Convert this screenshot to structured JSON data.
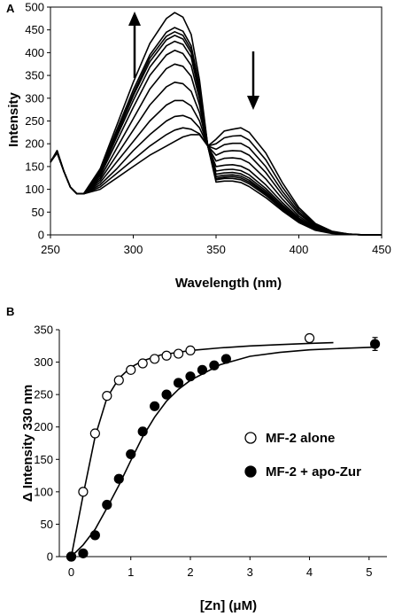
{
  "chart_data": [
    {
      "panel_label": "A",
      "type": "line",
      "xlabel": "Wavelength (nm)",
      "ylabel": "Intensity",
      "xlim": [
        250,
        450
      ],
      "ylim": [
        0,
        500
      ],
      "x_ticks": [
        "250",
        "300",
        "350",
        "400",
        "450"
      ],
      "y_ticks": [
        "0",
        "50",
        "100",
        "150",
        "200",
        "250",
        "300",
        "350",
        "400",
        "450",
        "500"
      ],
      "grid": false,
      "annotations": [
        "arrow up near 325 nm",
        "arrow down near 365 nm"
      ],
      "x": [
        250,
        254,
        258,
        262,
        266,
        270,
        280,
        290,
        300,
        310,
        320,
        325,
        330,
        335,
        340,
        345,
        350,
        355,
        360,
        365,
        370,
        380,
        390,
        400,
        410,
        420,
        430,
        440,
        450
      ],
      "series": [
        {
          "values": [
            160,
            180,
            140,
            105,
            90,
            90,
            100,
            125,
            150,
            175,
            195,
            205,
            215,
            220,
            220,
            195,
            210,
            228,
            232,
            235,
            225,
            180,
            115,
            60,
            25,
            8,
            2,
            0,
            0
          ]
        },
        {
          "values": [
            160,
            180,
            140,
            105,
            90,
            90,
            105,
            135,
            165,
            195,
            220,
            230,
            235,
            232,
            222,
            195,
            200,
            213,
            217,
            218,
            208,
            165,
            105,
            55,
            22,
            7,
            2,
            0,
            0
          ]
        },
        {
          "values": [
            160,
            181,
            140,
            105,
            90,
            90,
            110,
            145,
            185,
            220,
            250,
            260,
            262,
            255,
            235,
            195,
            188,
            198,
            201,
            201,
            191,
            150,
            96,
            50,
            20,
            6,
            2,
            0,
            0
          ]
        },
        {
          "values": [
            160,
            181,
            140,
            105,
            90,
            90,
            115,
            160,
            205,
            250,
            285,
            295,
            295,
            283,
            250,
            195,
            175,
            183,
            185,
            184,
            175,
            137,
            88,
            46,
            18,
            6,
            1,
            0,
            0
          ]
        },
        {
          "values": [
            160,
            182,
            140,
            105,
            90,
            90,
            120,
            175,
            230,
            285,
            325,
            335,
            332,
            315,
            268,
            195,
            162,
            168,
            169,
            167,
            158,
            123,
            79,
            41,
            16,
            5,
            1,
            0,
            0
          ]
        },
        {
          "values": [
            160,
            182,
            140,
            105,
            90,
            90,
            125,
            190,
            255,
            320,
            365,
            375,
            370,
            348,
            285,
            195,
            150,
            153,
            154,
            151,
            142,
            110,
            71,
            37,
            14,
            5,
            1,
            0,
            0
          ]
        },
        {
          "values": [
            160,
            183,
            140,
            105,
            90,
            90,
            130,
            205,
            280,
            350,
            395,
            405,
            398,
            372,
            298,
            195,
            140,
            143,
            144,
            141,
            132,
            102,
            66,
            34,
            13,
            4,
            1,
            0,
            0
          ]
        },
        {
          "values": [
            160,
            183,
            140,
            105,
            90,
            90,
            133,
            215,
            295,
            368,
            415,
            425,
            418,
            390,
            308,
            195,
            133,
            136,
            137,
            134,
            125,
            97,
            62,
            32,
            12,
            4,
            1,
            0,
            0
          ]
        },
        {
          "values": [
            160,
            184,
            140,
            105,
            90,
            90,
            135,
            220,
            305,
            380,
            428,
            438,
            430,
            400,
            315,
            195,
            128,
            131,
            132,
            129,
            120,
            93,
            60,
            31,
            12,
            4,
            1,
            0,
            0
          ]
        },
        {
          "values": [
            160,
            184,
            140,
            105,
            90,
            90,
            137,
            225,
            310,
            388,
            436,
            446,
            438,
            407,
            320,
            195,
            124,
            127,
            128,
            125,
            116,
            90,
            58,
            30,
            11,
            4,
            1,
            0,
            0
          ]
        },
        {
          "values": [
            160,
            185,
            140,
            105,
            90,
            90,
            140,
            230,
            318,
            395,
            445,
            455,
            447,
            415,
            326,
            195,
            121,
            124,
            124,
            121,
            112,
            87,
            56,
            29,
            11,
            4,
            1,
            0,
            0
          ]
        },
        {
          "values": [
            160,
            185,
            140,
            105,
            90,
            90,
            145,
            240,
            335,
            420,
            475,
            488,
            478,
            440,
            340,
            195,
            116,
            118,
            118,
            115,
            106,
            82,
            53,
            27,
            10,
            3,
            1,
            0,
            0
          ]
        }
      ]
    },
    {
      "panel_label": "B",
      "type": "scatter",
      "xlabel": "[Zn] (μM)",
      "ylabel": "Δ Intensity 330 nm",
      "xlim": [
        -0.2,
        5.3
      ],
      "ylim": [
        0,
        350
      ],
      "x_ticks": [
        0,
        1,
        2,
        3,
        4,
        5
      ],
      "y_ticks": [
        0,
        50,
        100,
        150,
        200,
        250,
        300,
        350
      ],
      "grid": false,
      "legend_position": "right",
      "series": [
        {
          "name": "MF-2 alone",
          "marker": "open-circle",
          "x": [
            0,
            0.2,
            0.4,
            0.6,
            0.8,
            1.0,
            1.2,
            1.4,
            1.6,
            1.8,
            2.0,
            4.0
          ],
          "values": [
            0,
            100,
            190,
            248,
            272,
            288,
            298,
            305,
            310,
            313,
            318,
            337
          ],
          "fit": {
            "x": [
              0,
              0.2,
              0.4,
              0.6,
              0.8,
              1.0,
              1.2,
              1.5,
              2.0,
              2.5,
              3.0,
              3.5,
              4.0,
              4.4
            ],
            "values": [
              0,
              95,
              185,
              245,
              275,
              292,
              302,
              311,
              318,
              322,
              325,
              327,
              329,
              330
            ]
          }
        },
        {
          "name": "MF-2 + apo-Zur",
          "marker": "filled-circle",
          "x": [
            0,
            0.2,
            0.4,
            0.6,
            0.8,
            1.0,
            1.2,
            1.4,
            1.6,
            1.8,
            2.0,
            2.2,
            2.4,
            2.6,
            5.1
          ],
          "values": [
            0,
            5,
            33,
            80,
            120,
            158,
            193,
            232,
            250,
            268,
            278,
            288,
            295,
            305,
            328
          ],
          "error": [
            0,
            0,
            0,
            0,
            0,
            0,
            6,
            0,
            0,
            0,
            0,
            0,
            0,
            6,
            10
          ],
          "fit": {
            "x": [
              0,
              0.2,
              0.4,
              0.6,
              0.8,
              1.0,
              1.2,
              1.4,
              1.6,
              1.8,
              2.0,
              2.5,
              3.0,
              3.5,
              4.0,
              4.5,
              5.1
            ],
            "values": [
              0,
              18,
              42,
              75,
              110,
              148,
              185,
              215,
              240,
              258,
              272,
              296,
              309,
              315,
              319,
              321,
              323
            ]
          }
        }
      ]
    }
  ]
}
